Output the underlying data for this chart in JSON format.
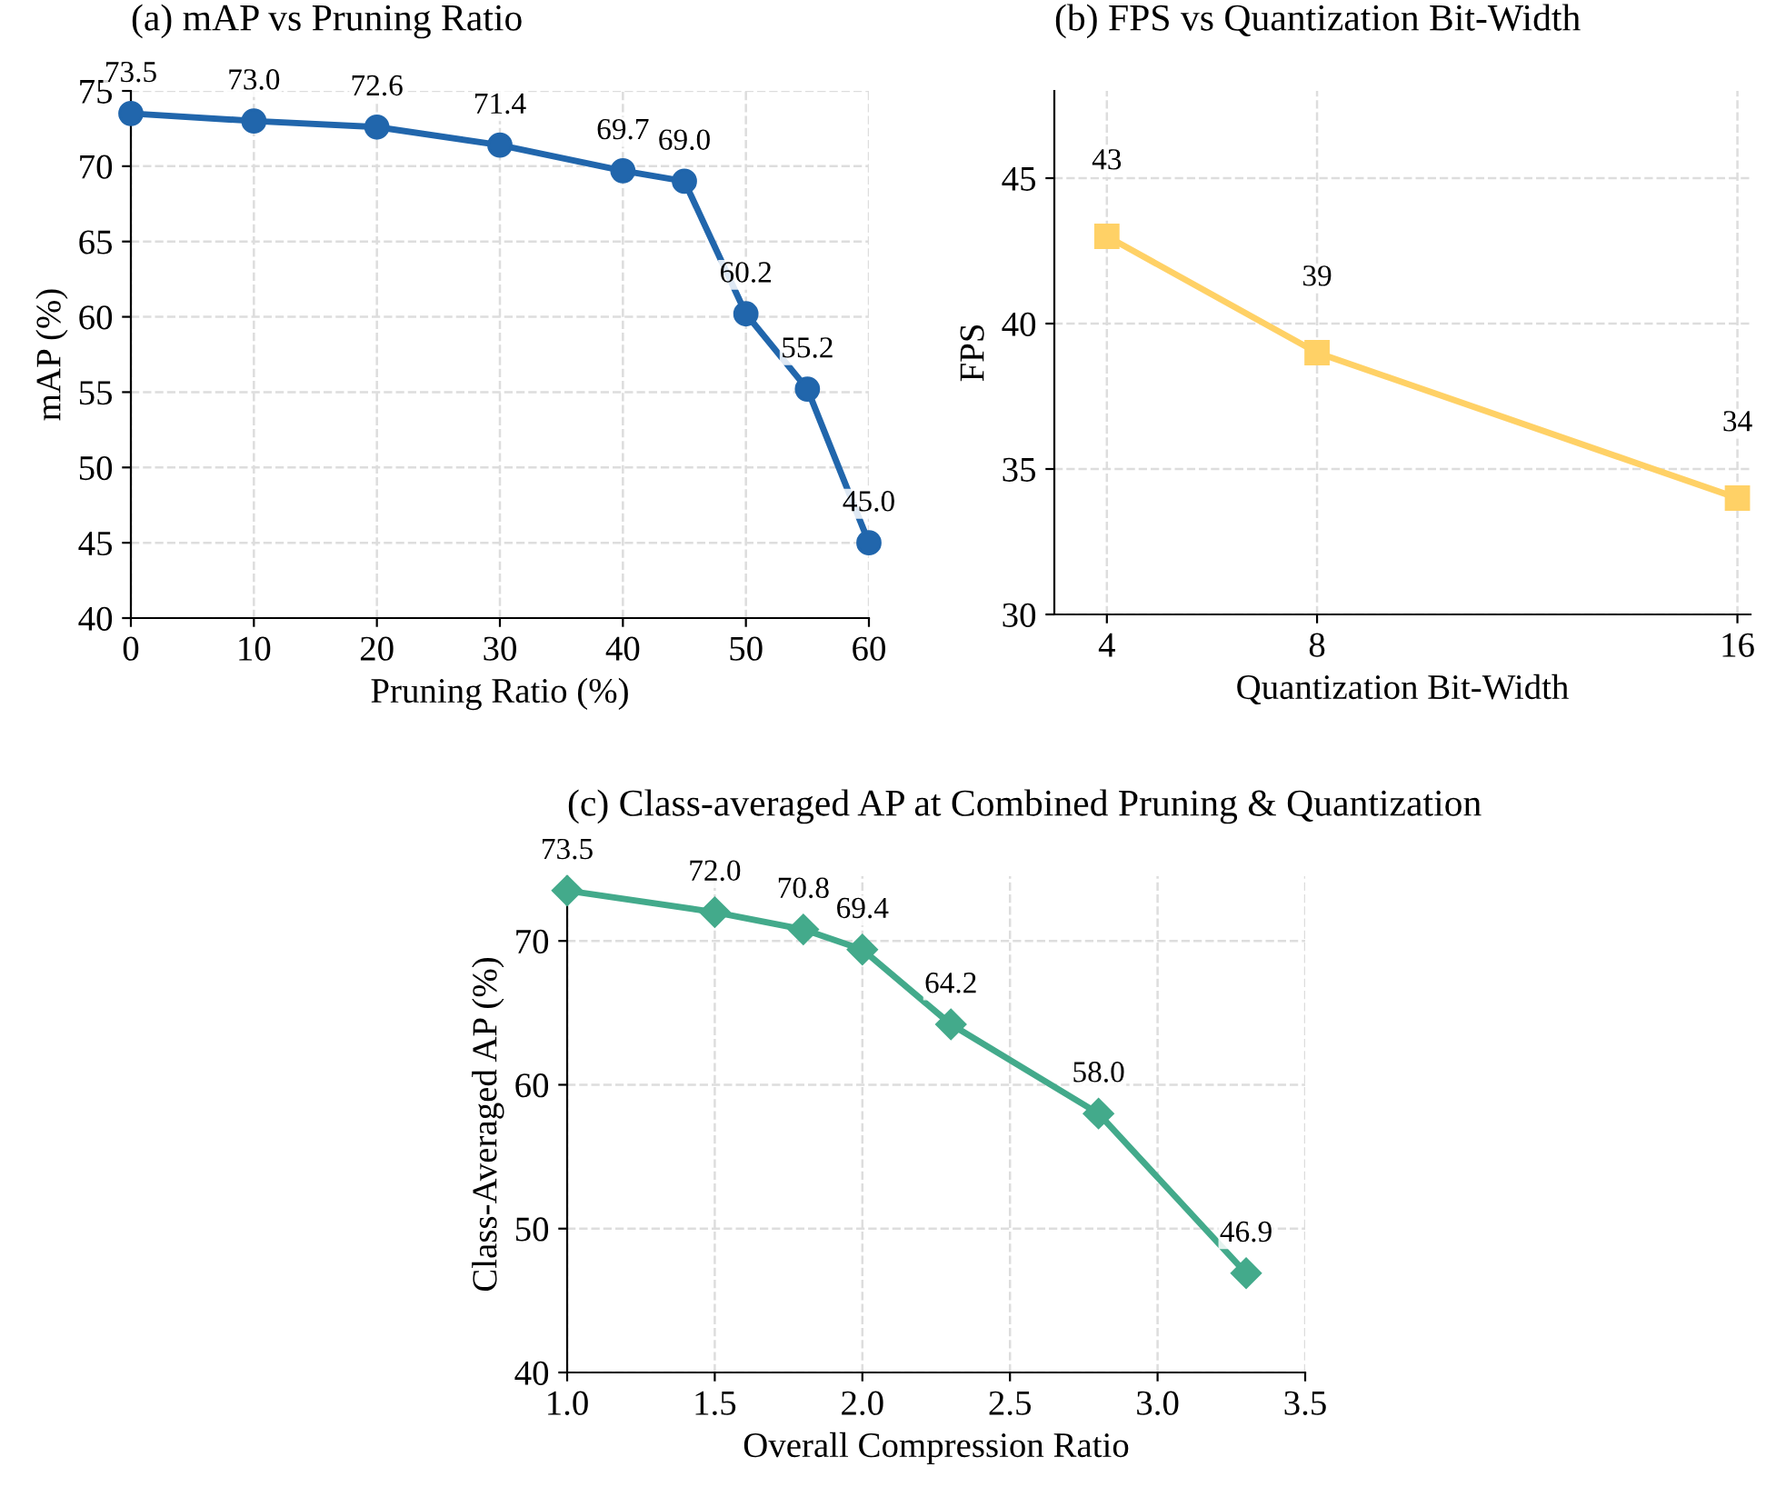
{
  "chart_data": [
    {
      "type": "line",
      "title": "(a) mAP vs Pruning Ratio",
      "xlabel": "Pruning Ratio (%)",
      "ylabel": "mAP (%)",
      "x": [
        0,
        10,
        20,
        30,
        40,
        45,
        50,
        55,
        60
      ],
      "series": [
        {
          "color": "#2166ac",
          "values": [
            73.5,
            73.0,
            72.6,
            71.4,
            69.7,
            69.0,
            60.2,
            55.2,
            45.0
          ],
          "value_labels": [
            "73.5",
            "73.0",
            "72.6",
            "71.4",
            "69.7",
            "69.0",
            "60.2",
            "55.2",
            "45.0"
          ]
        }
      ],
      "xlim": [
        0,
        60
      ],
      "xticks": [
        0,
        10,
        20,
        30,
        40,
        50,
        60
      ],
      "ylim": [
        40,
        75
      ],
      "yticks": [
        40,
        45,
        50,
        55,
        60,
        65,
        70,
        75
      ],
      "grid": true,
      "marker": "circle",
      "line_style": "solid"
    },
    {
      "type": "line",
      "title": "(b) FPS vs Quantization Bit-Width",
      "xlabel": "Quantization Bit-Width",
      "ylabel": "FPS",
      "x": [
        4,
        8,
        16
      ],
      "series": [
        {
          "color": "#ffd166",
          "values": [
            43,
            39,
            34
          ],
          "value_labels": [
            "43",
            "39",
            "34"
          ]
        }
      ],
      "xlim": [
        3,
        16.25
      ],
      "xticks": [
        4,
        8,
        16
      ],
      "ylim": [
        30,
        48
      ],
      "yticks": [
        30,
        35,
        40,
        45
      ],
      "grid": true,
      "marker": "square",
      "line_style": "solid"
    },
    {
      "type": "line",
      "title": "(c) Class-averaged AP at Combined Pruning & Quantization",
      "xlabel": "Overall Compression Ratio",
      "ylabel": "Class-Averaged AP (%)",
      "x": [
        1.0,
        1.5,
        1.8,
        2.0,
        2.3,
        2.8,
        3.3
      ],
      "series": [
        {
          "color": "#43aa8b",
          "values": [
            73.5,
            72.0,
            70.8,
            69.4,
            64.2,
            58.0,
            46.9
          ],
          "value_labels": [
            "73.5",
            "72.0",
            "70.8",
            "69.4",
            "64.2",
            "58.0",
            "46.9"
          ]
        }
      ],
      "xlim": [
        1.0,
        3.5
      ],
      "xticks": [
        {
          "value": 1,
          "label": "1.0"
        },
        1.5,
        {
          "value": 2,
          "label": "2.0"
        },
        2.5,
        {
          "value": 3,
          "label": "3.0"
        },
        3.5
      ],
      "ylim": [
        40,
        74.5
      ],
      "yticks": [
        40,
        50,
        60,
        70
      ],
      "grid": true,
      "marker": "diamond",
      "line_style": "solid"
    }
  ]
}
